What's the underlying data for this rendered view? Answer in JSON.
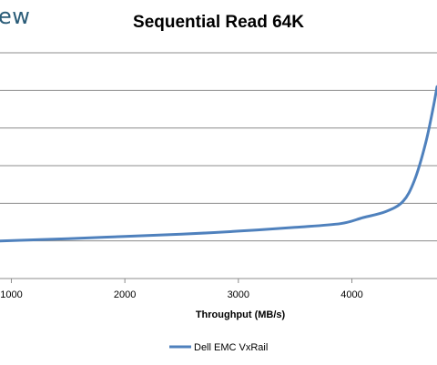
{
  "logo": {
    "text": "ew"
  },
  "chart_data": {
    "type": "line",
    "title": "Sequential Read 64K",
    "xlabel": "Throughput (MB/s)",
    "ylabel": "",
    "xlim": [
      900,
      4750
    ],
    "ylim": [
      0,
      6
    ],
    "xticks": [
      1000,
      2000,
      3000,
      4000
    ],
    "grid": true,
    "legend_position": "bottom",
    "series": [
      {
        "name": "Dell EMC VxRail",
        "color": "#4f81bd",
        "x": [
          900,
          1500,
          2000,
          2500,
          3000,
          3500,
          3900,
          4100,
          4300,
          4450,
          4550,
          4650,
          4720,
          4750
        ],
        "y": [
          1.0,
          1.06,
          1.12,
          1.18,
          1.26,
          1.36,
          1.46,
          1.62,
          1.78,
          2.05,
          2.6,
          3.6,
          4.6,
          5.1
        ]
      }
    ]
  }
}
